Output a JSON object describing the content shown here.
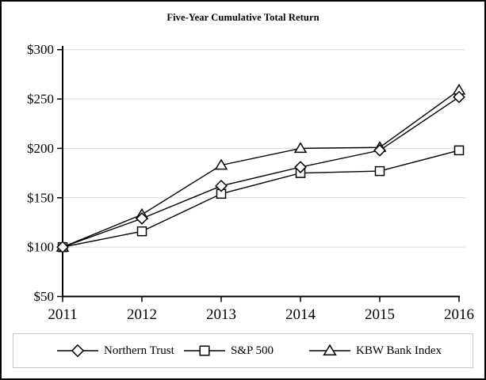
{
  "chart_data": {
    "type": "line",
    "title": "Five-Year Cumulative Total Return",
    "categories": [
      "2011",
      "2012",
      "2013",
      "2014",
      "2015",
      "2016"
    ],
    "series": [
      {
        "name": "Northern Trust",
        "marker": "diamond",
        "values": [
          100,
          129,
          162,
          181,
          198,
          252
        ]
      },
      {
        "name": "S&P 500",
        "marker": "square",
        "values": [
          100,
          116,
          154,
          175,
          177,
          198
        ]
      },
      {
        "name": "KBW Bank Index",
        "marker": "triangle",
        "values": [
          100,
          133,
          183,
          200,
          201,
          259
        ]
      }
    ],
    "xlabel": "",
    "ylabel": "",
    "ylim": [
      50,
      300
    ],
    "y_ticks": [
      50,
      100,
      150,
      200,
      250,
      300
    ],
    "y_tick_prefix": "$",
    "grid": "horizontal",
    "legend_position": "bottom",
    "colors": {
      "line": "#000000",
      "marker_fill": "#ffffff",
      "grid": "#d9d9d9",
      "legend_border": "#c9c9c9",
      "text": "#000000",
      "background": "#ffffff",
      "frame_border": "#000000"
    }
  }
}
